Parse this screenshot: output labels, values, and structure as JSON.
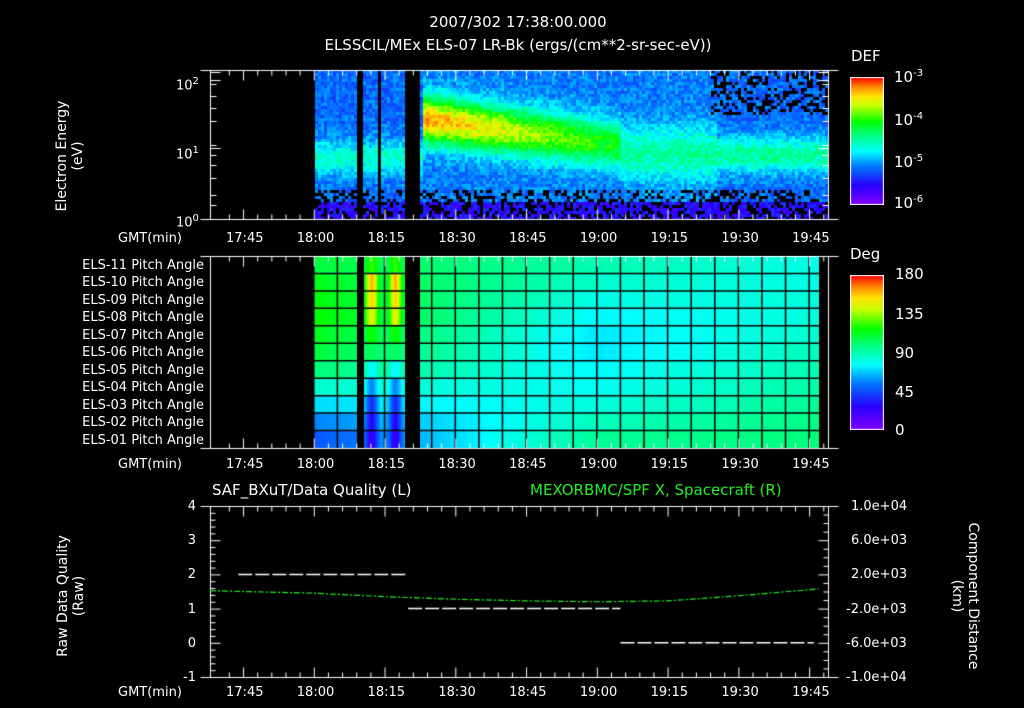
{
  "header": {
    "timestamp": "2007/302 17:38:00.000",
    "title": "ELSSCIL/MEx ELS-07 LR-Bk  (ergs/(cm**2-sr-sec-eV))"
  },
  "panels": {
    "energy": {
      "ylabel_line1": "Electron Energy",
      "ylabel_line2": "(eV)",
      "xlabel": "GMT(min)",
      "colorbar_title": "DEF",
      "colorbar_ticks": [
        "10",
        "10",
        "10",
        "10"
      ],
      "colorbar_exponents": [
        "-3",
        "-4",
        "-5",
        "-6"
      ],
      "y_ticks": [
        "10",
        "10",
        "10"
      ],
      "y_exponents": [
        "2",
        "1",
        "0"
      ]
    },
    "pitch": {
      "xlabel": "GMT(min)",
      "colorbar_title": "Deg",
      "colorbar_ticks": [
        "180",
        "135",
        "90",
        "45",
        "0"
      ],
      "rows": [
        "ELS-11 Pitch Angle",
        "ELS-10 Pitch Angle",
        "ELS-09 Pitch Angle",
        "ELS-08 Pitch Angle",
        "ELS-07 Pitch Angle",
        "ELS-06 Pitch Angle",
        "ELS-05 Pitch Angle",
        "ELS-04 Pitch Angle",
        "ELS-03 Pitch Angle",
        "ELS-02 Pitch Angle",
        "ELS-01 Pitch Angle"
      ]
    },
    "quality": {
      "left_title": "SAF_BXuT/Data Quality (L)",
      "right_title": "MEXORBMC/SPF X, Spacecraft (R)",
      "ylabel_line1": "Raw Data Quality",
      "ylabel_line2": "(Raw)",
      "ylabel_right_line1": "Component Distance",
      "ylabel_right_line2": "(km)",
      "xlabel": "GMT(min)",
      "y_ticks_left": [
        "4",
        "3",
        "2",
        "1",
        "0",
        "-1"
      ],
      "y_ticks_right": [
        "1.0e+04",
        "6.0e+03",
        "2.0e+03",
        "-2.0e+03",
        "-6.0e+03",
        "-1.0e+04"
      ]
    }
  },
  "x_ticks": [
    "17:45",
    "18:00",
    "18:15",
    "18:30",
    "18:45",
    "19:00",
    "19:15",
    "19:30",
    "19:45"
  ],
  "chart_data": [
    {
      "type": "heatmap",
      "title": "ELSSCIL/MEx ELS-07 LR-Bk (ergs/(cm**2-sr-sec-eV))",
      "xlabel": "GMT(min)",
      "ylabel": "Electron Energy (eV)",
      "yscale": "log",
      "ylim": [
        1,
        200
      ],
      "xlim": [
        "17:38",
        "19:49"
      ],
      "colorbar": {
        "label": "DEF",
        "scale": "log",
        "range": [
          1e-06,
          0.001
        ]
      },
      "data_gaps": [
        [
          "17:38",
          "18:00"
        ],
        [
          "18:09",
          "18:10"
        ],
        [
          "18:13",
          "18:14"
        ],
        [
          "18:19",
          "18:22"
        ]
      ],
      "features": [
        {
          "time": "18:23-18:45",
          "energy_eV": "30-60",
          "level": "~5e-4 (peak, orange)"
        },
        {
          "time": "18:45-19:05",
          "energy_eV": "15-50",
          "level": "~1e-4"
        },
        {
          "time": "19:25-19:48",
          "energy_eV": "15-20",
          "level": "~5e-5"
        }
      ]
    },
    {
      "type": "heatmap",
      "title": "ELS Pitch Angle",
      "xlabel": "GMT(min)",
      "categories": [
        "ELS-11",
        "ELS-10",
        "ELS-09",
        "ELS-08",
        "ELS-07",
        "ELS-06",
        "ELS-05",
        "ELS-04",
        "ELS-03",
        "ELS-02",
        "ELS-01"
      ],
      "colorbar": {
        "label": "Deg",
        "range": [
          0,
          180
        ]
      },
      "time_range": [
        "18:00",
        "19:47"
      ],
      "sample_values_at_18_00": [
        110,
        115,
        118,
        120,
        115,
        110,
        100,
        85,
        70,
        55,
        45
      ],
      "sample_values_at_19_00": [
        90,
        85,
        80,
        75,
        72,
        72,
        75,
        78,
        82,
        88,
        95
      ],
      "sample_values_at_19_45": [
        80,
        80,
        82,
        82,
        85,
        88,
        90,
        92,
        95,
        98,
        100
      ]
    },
    {
      "type": "line",
      "title": "SAF_BXuT/Data Quality (L) & MEXORBMC/SPF X, Spacecraft (R)",
      "xlabel": "GMT(min)",
      "ylabel": "Raw Data Quality (Raw)",
      "ylabel_right": "Component Distance (km)",
      "ylim": [
        -1,
        4
      ],
      "ylim_right": [
        -10000,
        10000
      ],
      "series": [
        {
          "name": "Data Quality (L)",
          "color": "#ffffff",
          "x": [
            "17:44",
            "18:20",
            "18:20",
            "19:05",
            "19:05",
            "19:46"
          ],
          "values": [
            2,
            2,
            1,
            1,
            0,
            0
          ]
        },
        {
          "name": "SPF X (R)",
          "color": "#22ee22",
          "x": [
            "17:38",
            "18:00",
            "18:15",
            "18:30",
            "18:45",
            "19:00",
            "19:15",
            "19:30",
            "19:47"
          ],
          "values": [
            100,
            -200,
            -600,
            -900,
            -1100,
            -1200,
            -1100,
            -500,
            300
          ]
        }
      ]
    }
  ]
}
